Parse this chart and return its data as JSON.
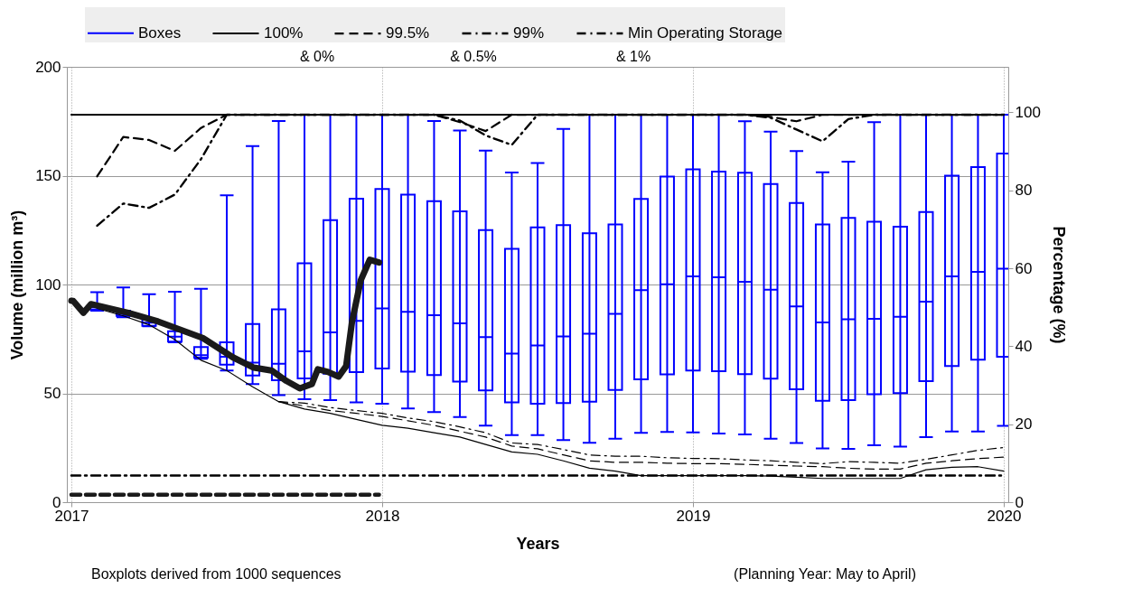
{
  "chart_data": {
    "type": "box",
    "xlabel": "Years",
    "ylabel": "Volume (million m³)",
    "y2label": "Percentage (%)",
    "xlim": [
      2017,
      2020
    ],
    "xticks": [
      2017,
      2018,
      2019,
      2020
    ],
    "ylim": [
      0,
      200
    ],
    "yticks": [
      0,
      50,
      100,
      150,
      200
    ],
    "y2lim": [
      0,
      111.7
    ],
    "y2ticks": [
      0,
      20,
      40,
      60,
      80,
      100
    ],
    "grid": true,
    "legend": "top",
    "annotations": [
      "& 0%",
      "& 0.5%",
      "& 1%",
      "Boxplots derived from 1000 sequences",
      "(Planning Year: May to April)"
    ],
    "series": [
      {
        "name": "Boxes",
        "color": "#0000ff",
        "x": [
          2017.083,
          2017.167,
          2017.25,
          2017.333,
          2017.417,
          2017.5,
          2017.583,
          2017.667,
          2017.75,
          2017.833,
          2017.917,
          2018,
          2018.083,
          2018.167,
          2018.25,
          2018.333,
          2018.417,
          2018.5,
          2018.583,
          2018.667,
          2018.75,
          2018.833,
          2018.917,
          2019,
          2019.083,
          2019.167,
          2019.25,
          2019.333,
          2019.417,
          2019.5,
          2019.583,
          2019.667,
          2019.75,
          2019.833,
          2019.917,
          2020
        ],
        "boxes": [
          {
            "low": 88,
            "q1": 88.5,
            "median": 89.5,
            "q3": 90.5,
            "high": 96.5
          },
          {
            "low": 85,
            "q1": 85.6,
            "median": 86.5,
            "q3": 88,
            "high": 98.6
          },
          {
            "low": 80.8,
            "q1": 81,
            "median": 82.5,
            "q3": 84,
            "high": 95.5
          },
          {
            "low": 73.4,
            "q1": 73.8,
            "median": 76,
            "q3": 78.5,
            "high": 96.7
          },
          {
            "low": 65.9,
            "q1": 66.4,
            "median": 67.5,
            "q3": 71.3,
            "high": 98
          },
          {
            "low": 60.5,
            "q1": 63.2,
            "median": 66.8,
            "q3": 73.4,
            "high": 141
          },
          {
            "low": 54.3,
            "q1": 58.2,
            "median": 64.1,
            "q3": 81.8,
            "high": 163.6
          },
          {
            "low": 49.2,
            "q1": 56,
            "median": 63.6,
            "q3": 88.6,
            "high": 175.1
          },
          {
            "low": 47.3,
            "q1": 56.8,
            "median": 69.3,
            "q3": 109.8,
            "high": 178
          },
          {
            "low": 46.9,
            "q1": 59,
            "median": 78,
            "q3": 129.6,
            "high": 178
          },
          {
            "low": 45.8,
            "q1": 59.8,
            "median": 83.3,
            "q3": 139.4,
            "high": 178
          },
          {
            "low": 45.2,
            "q1": 61.4,
            "median": 89,
            "q3": 143.9,
            "high": 178
          },
          {
            "low": 43.1,
            "q1": 60,
            "median": 87.4,
            "q3": 141.3,
            "high": 178
          },
          {
            "low": 41.4,
            "q1": 58.4,
            "median": 85.9,
            "q3": 138.3,
            "high": 175.1
          },
          {
            "low": 39.1,
            "q1": 55.4,
            "median": 82.2,
            "q3": 133.6,
            "high": 170.7
          },
          {
            "low": 35.2,
            "q1": 51.4,
            "median": 75.8,
            "q3": 125,
            "high": 161.5
          },
          {
            "low": 30.8,
            "q1": 45.9,
            "median": 68.3,
            "q3": 116.4,
            "high": 151.5
          },
          {
            "low": 30.8,
            "q1": 45.2,
            "median": 72,
            "q3": 126.2,
            "high": 155.8
          },
          {
            "low": 28.5,
            "q1": 45.5,
            "median": 76.1,
            "q3": 127.3,
            "high": 171.5
          },
          {
            "low": 27.3,
            "q1": 46.2,
            "median": 77.4,
            "q3": 123.5,
            "high": 178
          },
          {
            "low": 29.1,
            "q1": 51.6,
            "median": 86.5,
            "q3": 127.6,
            "high": 178
          },
          {
            "low": 31.8,
            "q1": 56.4,
            "median": 97.4,
            "q3": 139.3,
            "high": 178
          },
          {
            "low": 32.3,
            "q1": 58.7,
            "median": 100.1,
            "q3": 149.6,
            "high": 178
          },
          {
            "low": 32.1,
            "q1": 60.5,
            "median": 103.7,
            "q3": 152.9,
            "high": 178
          },
          {
            "low": 31.5,
            "q1": 60.2,
            "median": 103.3,
            "q3": 151.9,
            "high": 178
          },
          {
            "low": 31.1,
            "q1": 58.8,
            "median": 101.2,
            "q3": 151.4,
            "high": 175
          },
          {
            "low": 29.2,
            "q1": 56.7,
            "median": 97.6,
            "q3": 146.2,
            "high": 170.2
          },
          {
            "low": 27.2,
            "q1": 51.9,
            "median": 89.9,
            "q3": 137.5,
            "high": 161.3
          },
          {
            "low": 24.7,
            "q1": 46.6,
            "median": 82.6,
            "q3": 127.6,
            "high": 151.6
          },
          {
            "low": 24.5,
            "q1": 46.9,
            "median": 84,
            "q3": 130.6,
            "high": 156.4
          },
          {
            "low": 26.1,
            "q1": 49.6,
            "median": 84.2,
            "q3": 128.8,
            "high": 174.6
          },
          {
            "low": 25.5,
            "q1": 50.1,
            "median": 85.2,
            "q3": 126.6,
            "high": 178
          },
          {
            "low": 29.9,
            "q1": 55.6,
            "median": 92.1,
            "q3": 133.3,
            "high": 178
          },
          {
            "low": 32.5,
            "q1": 62.6,
            "median": 103.7,
            "q3": 150,
            "high": 178
          },
          {
            "low": 32.5,
            "q1": 65.5,
            "median": 105.8,
            "q3": 153.9,
            "high": 178
          },
          {
            "low": 35.1,
            "q1": 66.8,
            "median": 107.3,
            "q3": 160.2,
            "high": 178
          }
        ]
      },
      {
        "name": "100%",
        "type": "line",
        "color": "#000000",
        "line_style": "solid",
        "x": [
          2017,
          2020
        ],
        "values": [
          178,
          178
        ]
      },
      {
        "name": "99.5%",
        "type": "line",
        "color": "#000000",
        "line_style": "dashed",
        "x": [
          2017.083,
          2017.167,
          2017.25,
          2017.333,
          2017.417,
          2017.5,
          2017.583,
          2017.667,
          2017.75,
          2017.833,
          2017.917,
          2018,
          2018.083,
          2018.167,
          2018.25,
          2018.333,
          2018.417,
          2018.5,
          2018.583,
          2018.667,
          2018.75,
          2018.833,
          2018.917,
          2019,
          2019.083,
          2019.167,
          2019.25,
          2019.333,
          2019.417,
          2019.5,
          2019.583,
          2019.667,
          2019.75,
          2019.833,
          2019.917,
          2020
        ],
        "values": [
          149.7,
          167.8,
          166.4,
          161.4,
          171.9,
          178,
          178,
          178,
          178,
          178,
          178,
          178,
          178,
          178,
          174.6,
          170.5,
          178,
          178,
          178,
          178,
          178,
          178,
          178,
          178,
          178,
          178,
          177,
          175,
          178,
          178,
          178,
          178,
          178,
          178,
          178,
          178
        ]
      },
      {
        "name": "99%",
        "type": "line",
        "color": "#000000",
        "line_style": "dashdot",
        "x": [
          2017.083,
          2017.167,
          2017.25,
          2017.333,
          2017.417,
          2017.5,
          2017.583,
          2017.667,
          2017.75,
          2017.833,
          2017.917,
          2018,
          2018.083,
          2018.167,
          2018.25,
          2018.333,
          2018.417,
          2018.5,
          2018.583,
          2018.667,
          2018.75,
          2018.833,
          2018.917,
          2019,
          2019.083,
          2019.167,
          2019.25,
          2019.333,
          2019.417,
          2019.5,
          2019.583,
          2019.667,
          2019.75,
          2019.833,
          2019.917,
          2020
        ],
        "values": [
          127,
          137.2,
          135.2,
          141.3,
          157.6,
          178,
          178,
          178,
          178,
          178,
          178,
          178,
          178,
          178,
          175.3,
          168.5,
          164.1,
          178,
          178,
          178,
          178,
          178,
          178,
          178,
          178,
          178,
          176.6,
          171.2,
          165.8,
          176,
          178,
          178,
          178,
          178,
          178,
          178
        ]
      },
      {
        "name": "Min Operating Storage",
        "type": "line",
        "color": "#000000",
        "line_style": "dashdot",
        "x": [
          2017,
          2020
        ],
        "values": [
          12.2,
          12.2
        ]
      },
      {
        "type": "line",
        "color": "#000000",
        "line_style": "solid",
        "x": [
          2017.083,
          2017.167,
          2017.25,
          2017.333,
          2017.417,
          2017.5,
          2017.583,
          2017.667,
          2017.75,
          2017.833,
          2017.917,
          2018,
          2018.083,
          2018.167,
          2018.25,
          2018.333,
          2018.417,
          2018.5,
          2018.583,
          2018.667,
          2018.75,
          2018.833,
          2018.917,
          2019,
          2019.083,
          2019.167,
          2019.25,
          2019.333,
          2019.417,
          2019.5,
          2019.583,
          2019.667,
          2019.75,
          2019.833,
          2019.917,
          2020
        ],
        "values": [
          89,
          85.6,
          81.5,
          74.7,
          65.2,
          60.5,
          53,
          46.2,
          42.8,
          40.8,
          38,
          35.3,
          34,
          31.9,
          29.9,
          26.5,
          23.1,
          22,
          19,
          15.6,
          14.3,
          12.2,
          12.2,
          12.2,
          12.2,
          12.2,
          12,
          11.5,
          10.9,
          10.9,
          10.9,
          10.9,
          14.9,
          16,
          16.3,
          14.3
        ]
      },
      {
        "type": "line",
        "color": "#000000",
        "line_style": "dashed",
        "x": [
          2017.667,
          2017.75,
          2017.833,
          2017.917,
          2018,
          2018.083,
          2018.167,
          2018.25,
          2018.333,
          2018.417,
          2018.5,
          2018.583,
          2018.667,
          2018.75,
          2018.833,
          2018.917,
          2019,
          2019.083,
          2019.167,
          2019.25,
          2019.333,
          2019.417,
          2019.5,
          2019.583,
          2019.667,
          2019.75,
          2019.833,
          2019.917,
          2020
        ],
        "values": [
          46.2,
          44.2,
          42.1,
          40.8,
          39.4,
          37.4,
          35.3,
          32.6,
          29.9,
          25.8,
          24.5,
          21.7,
          19,
          18.3,
          18.3,
          17.9,
          17.7,
          17.7,
          17.4,
          17,
          16.6,
          16.3,
          15.6,
          15.2,
          15.2,
          17.9,
          19,
          20,
          20.7
        ]
      },
      {
        "type": "line",
        "color": "#000000",
        "line_style": "dashdot",
        "x": [
          2017.667,
          2017.75,
          2017.833,
          2017.917,
          2018,
          2018.083,
          2018.167,
          2018.25,
          2018.333,
          2018.417,
          2018.5,
          2018.583,
          2018.667,
          2018.75,
          2018.833,
          2018.917,
          2019,
          2019.083,
          2019.167,
          2019.25,
          2019.333,
          2019.417,
          2019.5,
          2019.583,
          2019.667,
          2019.75,
          2019.833,
          2019.917,
          2020
        ],
        "values": [
          46.2,
          45.5,
          43.5,
          42.1,
          40.8,
          38.7,
          37,
          34.6,
          31.9,
          27.2,
          26.5,
          24.2,
          21.7,
          21.1,
          21.1,
          20.4,
          20.1,
          20,
          19.4,
          19,
          18.3,
          17.7,
          18.6,
          18.3,
          17.9,
          19.7,
          21.7,
          23.8,
          25.1
        ]
      },
      {
        "type": "line",
        "color": "#1a1a1a",
        "line_style": "solid",
        "x": [
          2017,
          2017.006,
          2017.039,
          2017.063,
          2017.183,
          2017.279,
          2017.423,
          2017.519,
          2017.587,
          2017.644,
          2017.692,
          2017.735,
          2017.774,
          2017.793,
          2017.826,
          2017.86,
          2017.884,
          2017.903,
          2017.931,
          2017.96,
          2017.99
        ],
        "values": [
          92.5,
          92.4,
          87,
          91,
          87,
          83,
          75.4,
          66.6,
          61.8,
          60.5,
          55.7,
          52.3,
          54.3,
          61.1,
          59.8,
          57.7,
          62.5,
          82.9,
          101.9,
          111.4,
          110.1
        ]
      },
      {
        "type": "line",
        "color": "#1a1a1a",
        "line_style": "dashed",
        "x": [
          2017,
          2017.99
        ],
        "values": [
          3.4,
          3.4
        ]
      }
    ]
  }
}
